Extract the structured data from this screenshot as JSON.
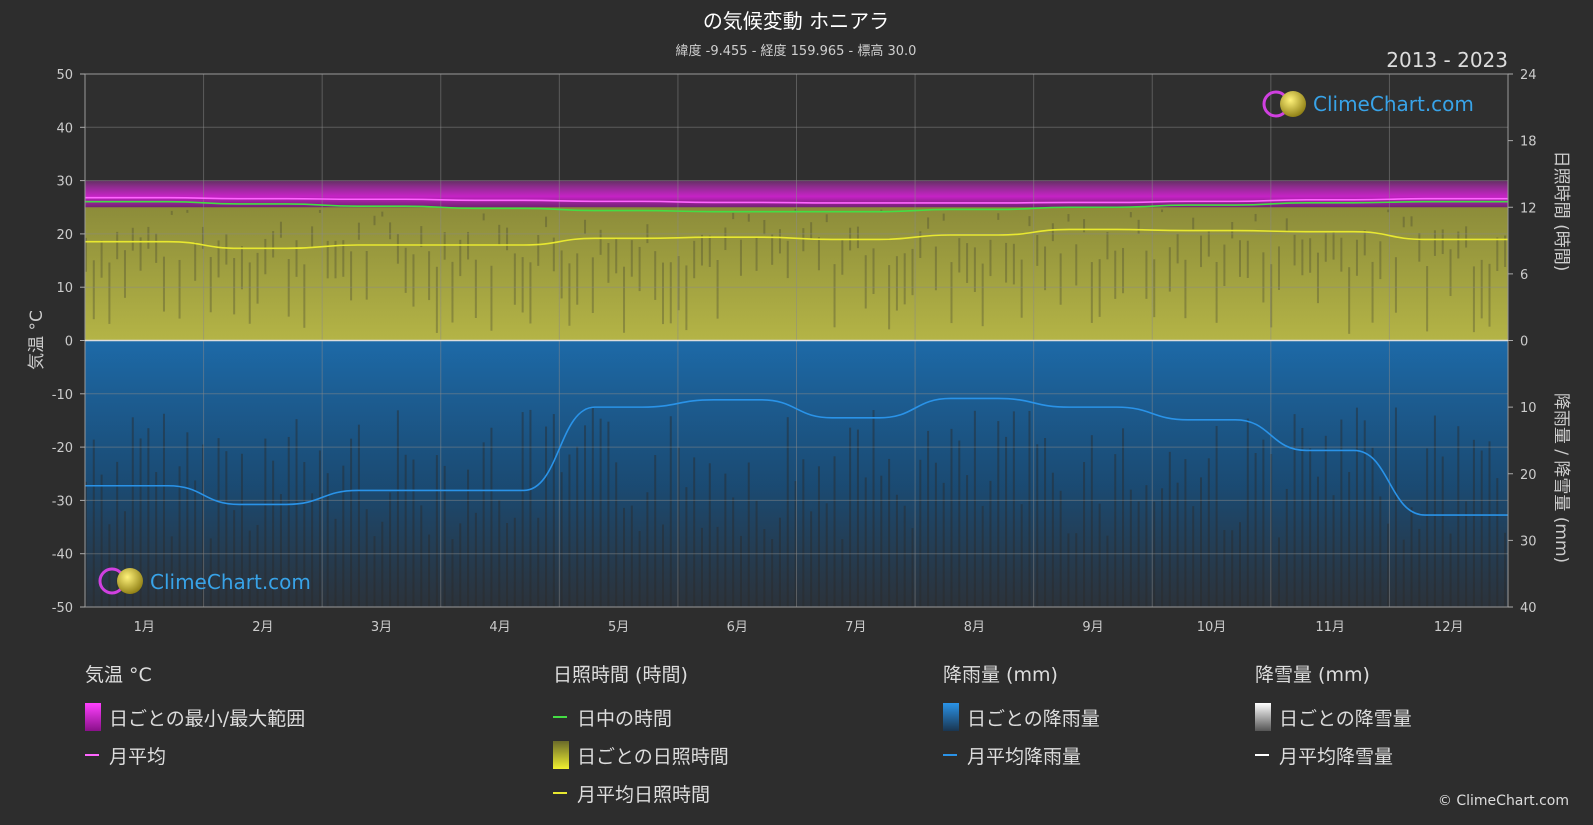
{
  "title": "の気候変動 ホニアラ",
  "subtitle": "緯度 -9.455 - 経度 159.965 - 標高 30.0",
  "years": "2013 - 2023",
  "logo_text": "ClimeChart.com",
  "copyright": "© ClimeChart.com",
  "axes": {
    "left_label": "気温 °C",
    "right_top_label": "日照時間 (時間)",
    "right_bottom_label": "降雨量 / 降雪量 (mm)",
    "left_ticks": [
      "50",
      "40",
      "30",
      "20",
      "10",
      "0",
      "-10",
      "-20",
      "-30",
      "-40",
      "-50"
    ],
    "right_top_ticks": [
      "24",
      "18",
      "12",
      "6",
      "0"
    ],
    "right_bottom_ticks": [
      "10",
      "20",
      "30",
      "40"
    ]
  },
  "chart_data": {
    "type": "line",
    "categories": [
      "1月",
      "2月",
      "3月",
      "4月",
      "5月",
      "6月",
      "7月",
      "8月",
      "9月",
      "10月",
      "11月",
      "12月"
    ],
    "temperature_ylim": [
      -50,
      50
    ],
    "sunshine_ylim": [
      0,
      24
    ],
    "precipitation_ylim": [
      0,
      40
    ],
    "grid": true,
    "series": [
      {
        "name": "月平均",
        "axis": "temperature",
        "color": "#ff66ff",
        "values": [
          26.8,
          26.6,
          26.5,
          26.3,
          26.1,
          25.9,
          25.8,
          25.8,
          25.9,
          26.1,
          26.4,
          26.6
        ]
      },
      {
        "name": "日中の時間",
        "axis": "sunshine",
        "color": "#44dd44",
        "values": [
          12.5,
          12.3,
          12.1,
          11.9,
          11.7,
          11.6,
          11.6,
          11.8,
          12.0,
          12.2,
          12.4,
          12.5
        ]
      },
      {
        "name": "月平均日照時間",
        "axis": "sunshine",
        "color": "#e8e830",
        "values": [
          8.9,
          8.3,
          8.6,
          8.6,
          9.2,
          9.3,
          9.1,
          9.5,
          10.0,
          9.9,
          9.8,
          9.1
        ]
      },
      {
        "name": "月平均降雨量",
        "axis": "precipitation",
        "color": "#2a93e8",
        "values": [
          21.8,
          24.6,
          22.5,
          22.5,
          10.0,
          8.9,
          11.6,
          8.7,
          10.0,
          11.9,
          16.5,
          26.2
        ]
      }
    ],
    "daily_bands": {
      "temperature_range": {
        "min": 24,
        "max": 30
      },
      "sunshine_hours_max": 12
    }
  },
  "legend": {
    "temperature": {
      "title": "気温 °C",
      "items": [
        "日ごとの最小/最大範囲",
        "月平均"
      ]
    },
    "sunshine": {
      "title": "日照時間 (時間)",
      "items": [
        "日中の時間",
        "日ごとの日照時間",
        "月平均日照時間"
      ]
    },
    "rain": {
      "title": "降雨量 (mm)",
      "items": [
        "日ごとの降雨量",
        "月平均降雨量"
      ]
    },
    "snow": {
      "title": "降雪量 (mm)",
      "items": [
        "日ごとの降雪量",
        "月平均降雪量"
      ]
    }
  },
  "colors": {
    "background": "#2d2d2d",
    "grid": "#8a8a8a",
    "temp_range": "#e020e0",
    "sunshine_bars": "#a8a840",
    "rain_bars": "#1f6fae",
    "snow": "#ffffff"
  }
}
